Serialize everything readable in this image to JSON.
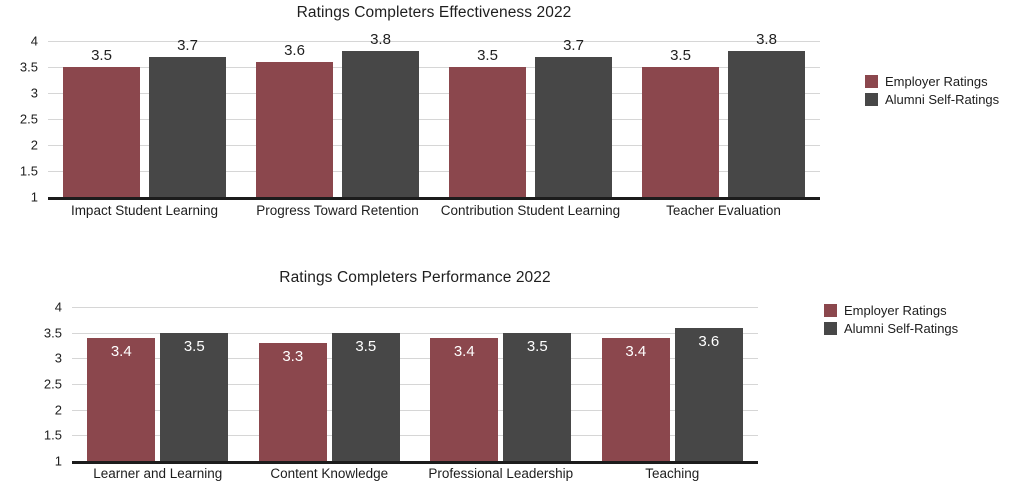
{
  "page": {
    "background": "#ffffff"
  },
  "colors": {
    "employer": "#8b474d",
    "alumni": "#474747",
    "gridline": "#d6d6d6",
    "baseline": "#1c1c1c",
    "value_label_dark": "#1f1f1f",
    "value_label_light": "#ffffff",
    "axis_text": "#1d1d1d",
    "title_text": "#1e1e1e"
  },
  "chart_data": [
    {
      "type": "bar",
      "title": "Ratings Completers Effectiveness 2022",
      "categories": [
        "Impact Student Learning",
        "Progress Toward Retention",
        "Contribution Student Learning",
        "Teacher Evaluation"
      ],
      "series": [
        {
          "name": "Employer Ratings",
          "color": "#8b474d",
          "values": [
            3.5,
            3.6,
            3.5,
            3.5
          ]
        },
        {
          "name": "Alumni Self-Ratings",
          "color": "#474747",
          "values": [
            3.7,
            3.8,
            3.7,
            3.8
          ]
        }
      ],
      "ylim": [
        1,
        4
      ],
      "yticks": [
        4,
        3.5,
        3,
        2.5,
        2,
        1.5,
        1
      ],
      "grid": true,
      "legend_position": "right",
      "value_label_position": "above",
      "value_label_color": "#1f1f1f"
    },
    {
      "type": "bar",
      "title": "Ratings Completers Performance 2022",
      "categories": [
        "Learner and Learning",
        "Content Knowledge",
        "Professional Leadership",
        "Teaching"
      ],
      "series": [
        {
          "name": "Employer Ratings",
          "color": "#8b474d",
          "values": [
            3.4,
            3.3,
            3.4,
            3.4
          ]
        },
        {
          "name": "Alumni Self-Ratings",
          "color": "#474747",
          "values": [
            3.5,
            3.5,
            3.5,
            3.6
          ]
        }
      ],
      "ylim": [
        1,
        4
      ],
      "yticks": [
        4,
        3.5,
        3,
        2.5,
        2,
        1.5,
        1
      ],
      "grid": true,
      "legend_position": "right",
      "value_label_position": "inside",
      "value_label_color": "#ffffff"
    }
  ]
}
